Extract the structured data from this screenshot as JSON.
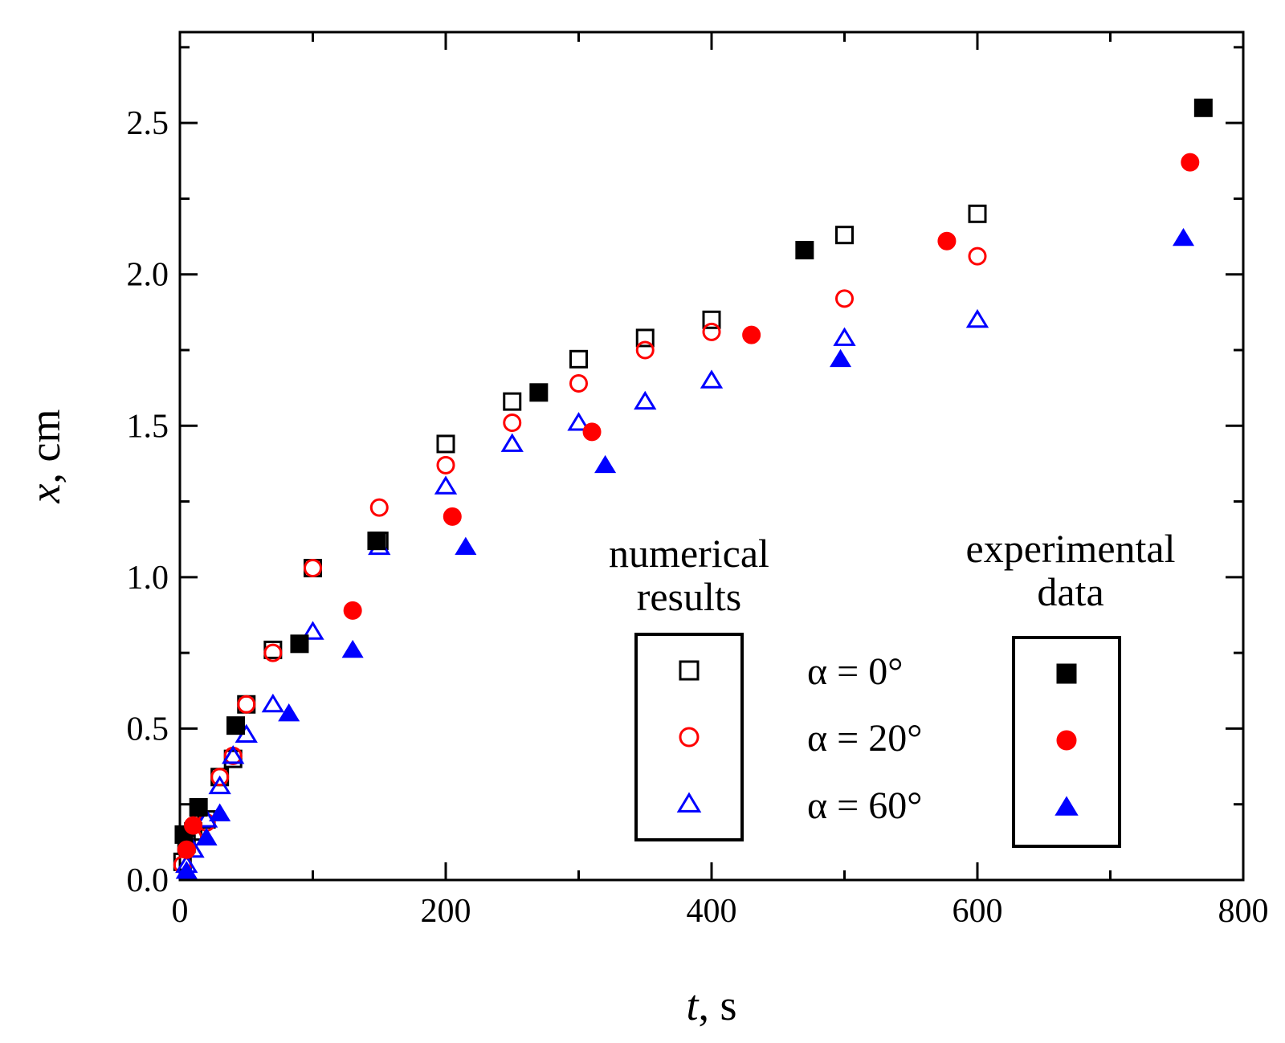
{
  "chart_data": {
    "type": "scatter",
    "title": "",
    "xlabel": {
      "var": "t",
      "unit": ", s"
    },
    "ylabel": {
      "var": "x",
      "unit": ", cm"
    },
    "xlim": [
      0,
      800
    ],
    "ylim": [
      0,
      2.8
    ],
    "x_ticks": [
      0,
      200,
      400,
      600,
      800
    ],
    "x_tick_labels": [
      "0",
      "200",
      "400",
      "600",
      "800"
    ],
    "y_ticks": [
      0,
      0.5,
      1.0,
      1.5,
      2.0,
      2.5
    ],
    "y_tick_labels": [
      "0.0",
      "0.5",
      "1.0",
      "1.5",
      "2.0",
      "2.5"
    ],
    "grid": false,
    "legend": {
      "numerical_title_line1": "numerical",
      "numerical_title_line2": "results",
      "experimental_title_line1": "experimental",
      "experimental_title_line2": "data",
      "labels": [
        "α = 0°",
        "α = 20°",
        "α = 60°"
      ]
    },
    "series": [
      {
        "name": "numerical α = 0°",
        "kind": "numerical",
        "marker": "square",
        "filled": false,
        "color": "#000000",
        "points": [
          [
            2,
            0.06
          ],
          [
            5,
            0.12
          ],
          [
            10,
            0.16
          ],
          [
            20,
            0.2
          ],
          [
            30,
            0.34
          ],
          [
            40,
            0.4
          ],
          [
            50,
            0.58
          ],
          [
            70,
            0.76
          ],
          [
            100,
            1.03
          ],
          [
            150,
            1.12
          ],
          [
            200,
            1.44
          ],
          [
            250,
            1.58
          ],
          [
            300,
            1.72
          ],
          [
            350,
            1.79
          ],
          [
            400,
            1.85
          ],
          [
            500,
            2.13
          ],
          [
            600,
            2.2
          ]
        ]
      },
      {
        "name": "numerical α = 20°",
        "kind": "numerical",
        "marker": "circle",
        "filled": false,
        "color": "#ff0000",
        "points": [
          [
            2,
            0.05
          ],
          [
            5,
            0.1
          ],
          [
            10,
            0.14
          ],
          [
            20,
            0.19
          ],
          [
            30,
            0.34
          ],
          [
            40,
            0.41
          ],
          [
            50,
            0.58
          ],
          [
            70,
            0.75
          ],
          [
            100,
            1.03
          ],
          [
            150,
            1.23
          ],
          [
            200,
            1.37
          ],
          [
            250,
            1.51
          ],
          [
            300,
            1.64
          ],
          [
            350,
            1.75
          ],
          [
            400,
            1.81
          ],
          [
            500,
            1.92
          ],
          [
            600,
            2.06
          ]
        ]
      },
      {
        "name": "numerical α = 60°",
        "kind": "numerical",
        "marker": "triangle",
        "filled": false,
        "color": "#0000ff",
        "points": [
          [
            5,
            0.05
          ],
          [
            10,
            0.1
          ],
          [
            20,
            0.2
          ],
          [
            30,
            0.31
          ],
          [
            40,
            0.41
          ],
          [
            50,
            0.48
          ],
          [
            70,
            0.58
          ],
          [
            100,
            0.82
          ],
          [
            150,
            1.1
          ],
          [
            200,
            1.3
          ],
          [
            250,
            1.44
          ],
          [
            300,
            1.51
          ],
          [
            350,
            1.58
          ],
          [
            400,
            1.65
          ],
          [
            500,
            1.79
          ],
          [
            600,
            1.85
          ]
        ]
      },
      {
        "name": "experimental α = 0°",
        "kind": "experimental",
        "marker": "square",
        "filled": true,
        "color": "#000000",
        "points": [
          [
            3,
            0.15
          ],
          [
            14,
            0.24
          ],
          [
            42,
            0.51
          ],
          [
            90,
            0.78
          ],
          [
            148,
            1.12
          ],
          [
            270,
            1.61
          ],
          [
            470,
            2.08
          ],
          [
            770,
            2.55
          ]
        ]
      },
      {
        "name": "experimental α = 20°",
        "kind": "experimental",
        "marker": "circle",
        "filled": true,
        "color": "#ff0000",
        "points": [
          [
            5,
            0.1
          ],
          [
            10,
            0.18
          ],
          [
            130,
            0.89
          ],
          [
            205,
            1.2
          ],
          [
            310,
            1.48
          ],
          [
            430,
            1.8
          ],
          [
            577,
            2.11
          ],
          [
            760,
            2.37
          ]
        ]
      },
      {
        "name": "experimental α = 60°",
        "kind": "experimental",
        "marker": "triangle",
        "filled": true,
        "color": "#0000ff",
        "points": [
          [
            5,
            0.03
          ],
          [
            20,
            0.14
          ],
          [
            30,
            0.22
          ],
          [
            82,
            0.55
          ],
          [
            130,
            0.76
          ],
          [
            215,
            1.1
          ],
          [
            320,
            1.37
          ],
          [
            497,
            1.72
          ],
          [
            755,
            2.12
          ]
        ]
      }
    ]
  }
}
